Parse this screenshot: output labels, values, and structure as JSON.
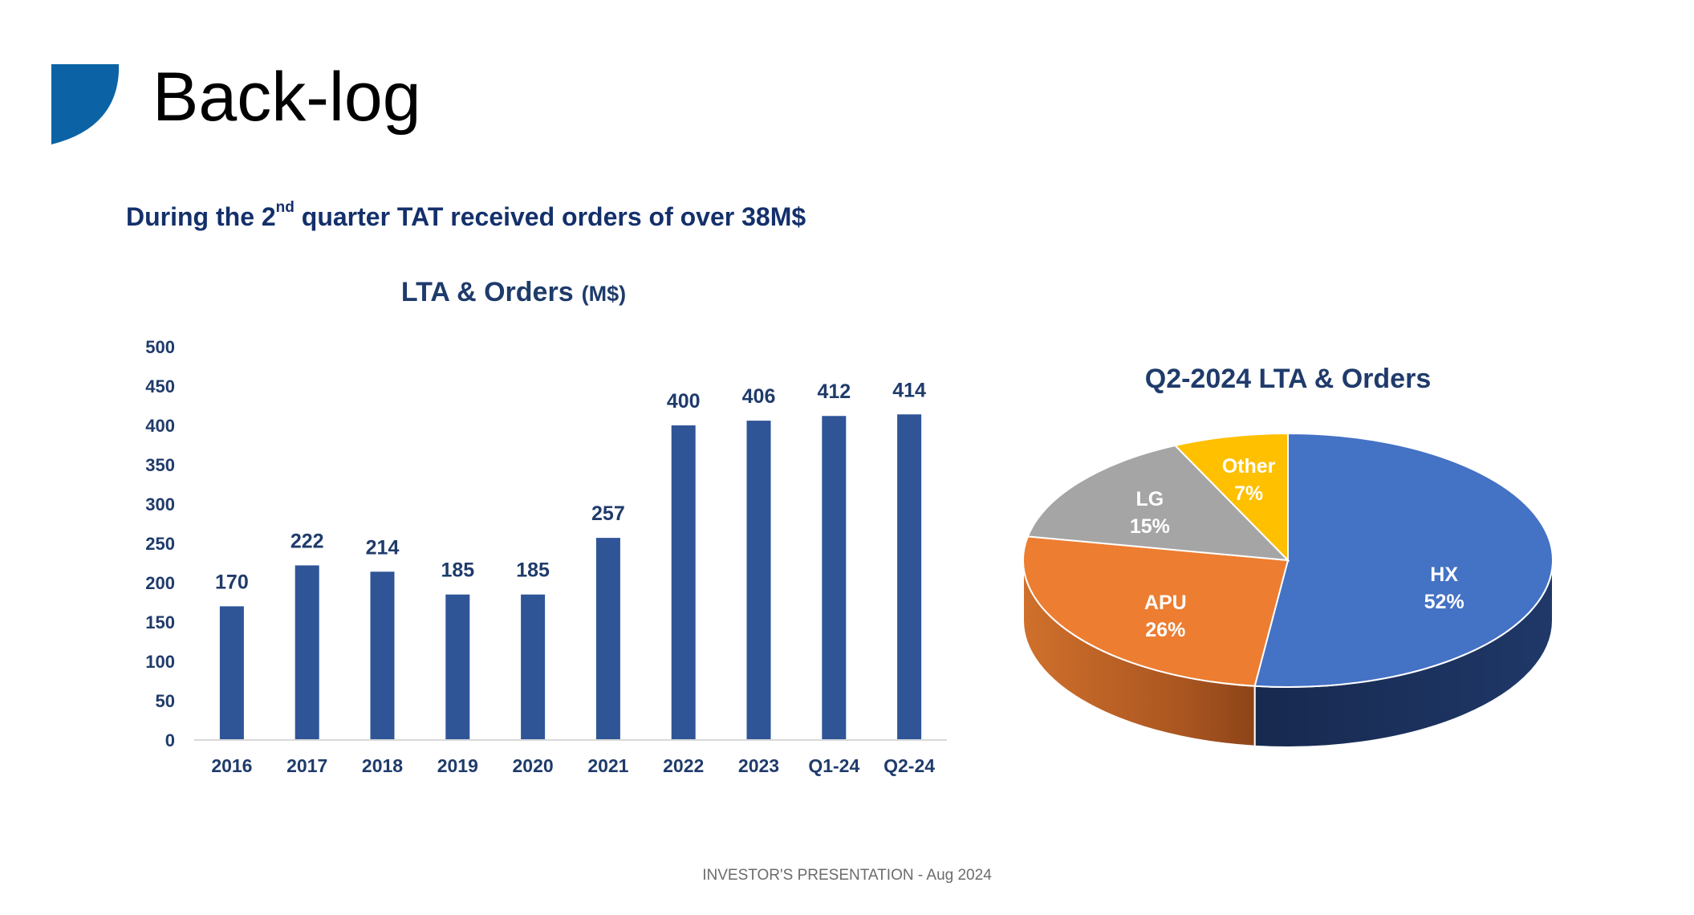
{
  "slide": {
    "title": "Back-log",
    "subtitle_before": "During the 2",
    "subtitle_sup": "nd",
    "subtitle_after": " quarter TAT received orders of over 38M$",
    "footer": "INVESTOR'S PRESENTATION - Aug 2024"
  },
  "colors": {
    "brand_blue": "#0b63a5",
    "bar_blue": "#2f5597",
    "text_navy": "#1f3b6b"
  },
  "chart_data": [
    {
      "type": "bar",
      "title": "LTA & Orders",
      "title_unit": "(M$)",
      "categories": [
        "2016",
        "2017",
        "2018",
        "2019",
        "2020",
        "2021",
        "2022",
        "2023",
        "Q1-24",
        "Q2-24"
      ],
      "values": [
        170,
        222,
        214,
        185,
        185,
        257,
        400,
        406,
        412,
        414
      ],
      "ylim": [
        0,
        500
      ],
      "yticks": [
        0,
        50,
        100,
        150,
        200,
        250,
        300,
        350,
        400,
        450,
        500
      ],
      "xlabel": "",
      "ylabel": "",
      "grid": false,
      "legend": "none"
    },
    {
      "type": "pie",
      "title": "Q2-2024 LTA & Orders",
      "labels": [
        "HX",
        "APU",
        "LG",
        "Other"
      ],
      "values": [
        52,
        26,
        15,
        7
      ],
      "value_labels": [
        "52%",
        "26%",
        "15%",
        "7%"
      ],
      "colors": [
        "#4472c4",
        "#ed7d31",
        "#a5a5a5",
        "#ffc000"
      ],
      "style": "3d",
      "legend": "none"
    }
  ]
}
